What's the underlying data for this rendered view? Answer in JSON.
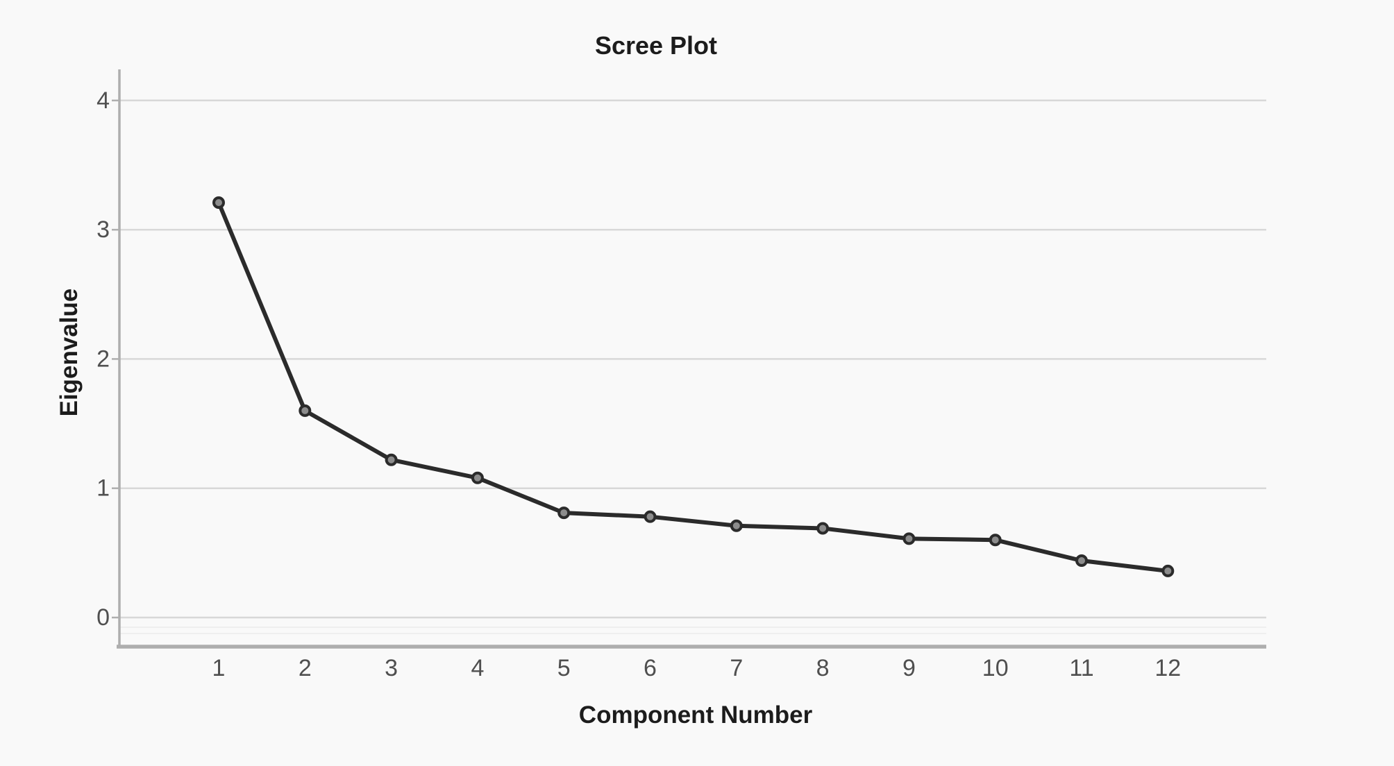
{
  "page": {
    "background": "#f9f9f9"
  },
  "chart_data": {
    "type": "line",
    "title": "Scree Plot",
    "xlabel": "Component Number",
    "ylabel": "Eigenvalue",
    "categories": [
      1,
      2,
      3,
      4,
      5,
      6,
      7,
      8,
      9,
      10,
      11,
      12
    ],
    "series": [
      {
        "name": "Eigenvalue",
        "values": [
          3.21,
          1.6,
          1.22,
          1.08,
          0.81,
          0.78,
          0.71,
          0.69,
          0.61,
          0.6,
          0.44,
          0.36
        ]
      }
    ],
    "yticks": [
      0,
      1,
      2,
      3,
      4
    ],
    "ylim": [
      -0.23,
      4.25
    ],
    "grid": "horizontal-only",
    "legend_position": "none",
    "marker_shape": "circle",
    "colors": {
      "line": "#2b2b2b",
      "marker_fill": "#8c8c8c",
      "marker_stroke": "#2b2b2b",
      "gridline": "#d8d8d8",
      "minor_gridline": "#ececec",
      "axis": "#aeaeae",
      "tick_label": "#4f4f4f",
      "title_text": "#1c1c1c",
      "background": "#f9f9f9"
    }
  }
}
